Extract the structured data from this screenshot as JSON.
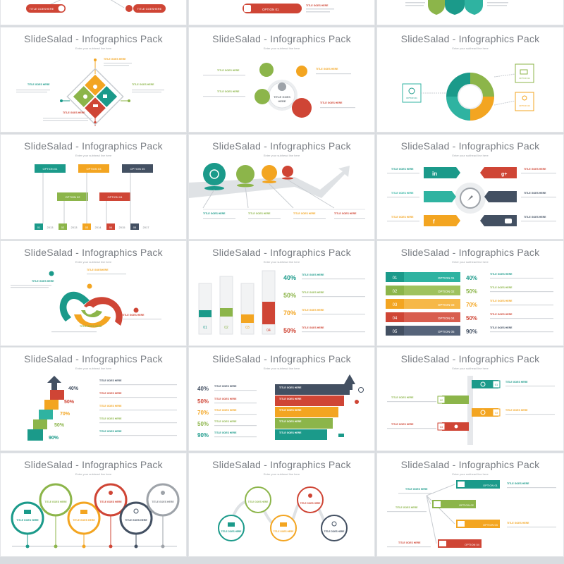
{
  "colors": {
    "teal": "#1b9a8a",
    "green": "#8cb54a",
    "orange": "#f3a521",
    "red": "#cf4535",
    "navy": "#435062",
    "grey": "#c8ccd1",
    "tealL": "#2fb3a1"
  },
  "slide_title": "SlideSalad - Infographics Pack",
  "slide_subtitle": "Enter your subhead line here",
  "common": {
    "title_goes_here": "TITLE GOES HERE",
    "title_goes_here_lower": "TITLE GOES HERE",
    "title_goes_here_mixed": "TITLE GOES HERE",
    "title_goes_here_short": "TITLE GOESHERE",
    "title_goes_here_stack": "TITLE GOES HERE",
    "placeholder": "This is a sample text. You simply add your own text and description here. This text is fully editable."
  },
  "top_partial": {
    "left_tags": [
      "TITLE GOESHERE",
      "TITLE GOESHERE"
    ],
    "mid_tag": "OPTION 01",
    "mid_title": "TITLE GOES HERE"
  },
  "diamond": {
    "icons": [
      "user-icon",
      "pie-chart-icon",
      "cart-icon",
      "truck-icon"
    ]
  },
  "circles_cluster": {
    "center_label": "TITLE GOES HERE"
  },
  "cycle": {
    "options": [
      "OPTION 01",
      "OPTION 02",
      "OPTION 03",
      "OPTION 04"
    ]
  },
  "ribbon_timeline": {
    "options": [
      "OPTION 01",
      "OPTION 02",
      "OPTION 03",
      "OPTION 04",
      "OPTION 05"
    ],
    "steps": [
      "01",
      "02",
      "03",
      "04",
      "05"
    ],
    "years": [
      "2013",
      "2013",
      "2014",
      "2015",
      "2017"
    ]
  },
  "growth_path": {
    "icons": [
      "bulb-icon",
      "lock-icon",
      "rocket-icon",
      "chat-icon"
    ]
  },
  "social": {
    "icons": [
      "linkedin-icon",
      "twitter-icon",
      "facebook-icon",
      "googleplus-icon",
      "pinterest-icon",
      "youtube-icon",
      "compass-icon"
    ]
  },
  "spiral": {
    "title": "TITLE GOESHERE"
  },
  "bars3d": {
    "steps": [
      "01",
      "02",
      "03",
      "04"
    ],
    "percents": [
      "40%",
      "50%",
      "70%",
      "50%"
    ]
  },
  "ribbon_options": {
    "steps": [
      "01",
      "02",
      "03",
      "04",
      "05"
    ],
    "options": [
      "OPTION 01",
      "OPTION 02",
      "OPTION 03",
      "OPTION 04",
      "OPTION 05"
    ],
    "percents": [
      "40%",
      "50%",
      "70%",
      "50%",
      "90%"
    ]
  },
  "stairs": {
    "percents": [
      "40%",
      "50%",
      "70%",
      "50%",
      "90%"
    ]
  },
  "stack_arrows": {
    "percents": [
      "40%",
      "50%",
      "70%",
      "50%",
      "90%"
    ]
  },
  "pole_steps": {
    "steps": [
      "01",
      "02",
      "03",
      "04"
    ]
  },
  "circle_row": {
    "label": "TITLE GOES HERE"
  },
  "wave_path": {
    "label": "TITLE GOES HERE"
  },
  "tree_tags": {
    "options": [
      "OPTION 01",
      "OPTION 02",
      "OPTION 03",
      "OPTION 04"
    ]
  }
}
